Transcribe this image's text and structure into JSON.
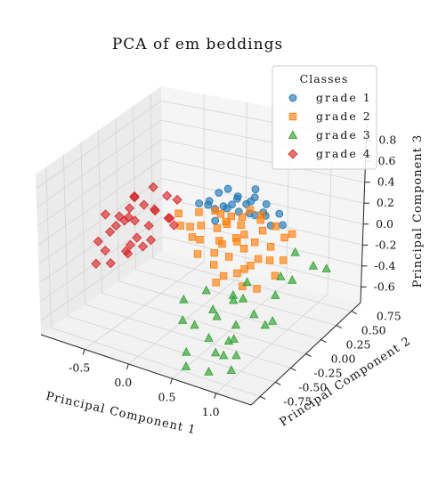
{
  "chart_data": {
    "type": "scatter",
    "projection": "3d",
    "title": "PCA of em beddings",
    "xlabel": "Principal Component 1",
    "ylabel": "Principal Component 2",
    "zlabel": "Principal Component 3",
    "xlim": [
      -1.0,
      1.4
    ],
    "ylim": [
      -0.9,
      0.9
    ],
    "zlim": [
      -0.75,
      0.95
    ],
    "xticks": [
      "-0.5",
      "0.0",
      "0.5",
      "1.0"
    ],
    "xtick_values": [
      -0.5,
      0.0,
      0.5,
      1.0
    ],
    "yticks": [
      "-0.75",
      "-0.50",
      "-0.25",
      "0.00",
      "0.25",
      "0.50",
      "0.75"
    ],
    "ytick_values": [
      -0.75,
      -0.5,
      -0.25,
      0.0,
      0.25,
      0.5,
      0.75
    ],
    "zticks": [
      "-0.6",
      "-0.4",
      "-0.2",
      "0.0",
      "0.2",
      "0.4",
      "0.6",
      "0.8"
    ],
    "ztick_values": [
      -0.6,
      -0.4,
      -0.2,
      0.0,
      0.2,
      0.4,
      0.6,
      0.8
    ],
    "grid": true,
    "legend": {
      "title": "Classes",
      "placement": "top-right"
    },
    "series": [
      {
        "name": "grade 1",
        "marker": "circle",
        "color": "#1f77b4",
        "points": [
          [
            0.12,
            0.62,
            0.18
          ],
          [
            -0.05,
            0.55,
            0.22
          ],
          [
            0.25,
            0.58,
            0.15
          ],
          [
            0.35,
            0.5,
            0.12
          ],
          [
            0.05,
            0.7,
            0.1
          ],
          [
            0.18,
            0.45,
            0.2
          ],
          [
            0.42,
            0.62,
            0.08
          ],
          [
            -0.12,
            0.48,
            0.12
          ],
          [
            0.28,
            0.68,
            0.25
          ],
          [
            0.08,
            0.52,
            0.3
          ],
          [
            0.5,
            0.55,
            0.1
          ],
          [
            0.15,
            0.78,
            0.05
          ],
          [
            -0.2,
            0.6,
            0.08
          ],
          [
            0.3,
            0.4,
            0.18
          ],
          [
            0.6,
            0.5,
            0.05
          ],
          [
            0.02,
            0.4,
            0.15
          ],
          [
            0.38,
            0.72,
            0.1
          ],
          [
            0.2,
            0.35,
            0.22
          ],
          [
            -0.08,
            0.66,
            0.02
          ],
          [
            0.45,
            0.45,
            0.15
          ],
          [
            0.65,
            0.62,
            0.0
          ],
          [
            0.1,
            0.3,
            0.1
          ],
          [
            0.55,
            0.7,
            0.05
          ],
          [
            -0.15,
            0.38,
            0.18
          ],
          [
            0.22,
            0.75,
            0.12
          ]
        ]
      },
      {
        "name": "grade 2",
        "marker": "square",
        "color": "#ff7f0e",
        "points": [
          [
            0.3,
            0.1,
            0.05
          ],
          [
            0.45,
            0.05,
            -0.05
          ],
          [
            0.2,
            0.2,
            0.1
          ],
          [
            0.55,
            0.15,
            0.0
          ],
          [
            0.35,
            -0.05,
            -0.1
          ],
          [
            0.6,
            0.25,
            0.02
          ],
          [
            0.15,
            0.0,
            0.08
          ],
          [
            0.4,
            0.3,
            0.12
          ],
          [
            0.7,
            0.05,
            -0.08
          ],
          [
            0.25,
            0.35,
            0.15
          ],
          [
            0.5,
            -0.1,
            -0.15
          ],
          [
            0.05,
            0.15,
            0.12
          ],
          [
            0.75,
            0.3,
            -0.02
          ],
          [
            0.3,
            0.45,
            0.1
          ],
          [
            0.62,
            -0.05,
            -0.12
          ],
          [
            0.1,
            0.3,
            0.2
          ],
          [
            0.85,
            0.15,
            -0.05
          ],
          [
            0.42,
            0.2,
            0.05
          ],
          [
            0.2,
            -0.1,
            0.0
          ],
          [
            0.58,
            0.4,
            0.05
          ],
          [
            0.0,
            0.05,
            0.15
          ],
          [
            0.8,
            0.45,
            0.0
          ],
          [
            0.35,
            0.15,
            0.2
          ],
          [
            0.68,
            0.2,
            -0.1
          ],
          [
            -0.05,
            0.25,
            0.18
          ],
          [
            0.48,
            0.5,
            0.08
          ],
          [
            0.9,
            0.3,
            -0.12
          ],
          [
            0.28,
            0.05,
            -0.05
          ],
          [
            0.52,
            0.08,
            0.1
          ],
          [
            0.15,
            0.4,
            0.05
          ],
          [
            0.72,
            -0.1,
            -0.2
          ],
          [
            0.38,
            0.38,
            -0.02
          ],
          [
            -0.15,
            0.1,
            0.1
          ],
          [
            0.62,
            0.55,
            0.02
          ],
          [
            0.22,
            0.25,
            -0.08
          ],
          [
            0.95,
            0.1,
            -0.15
          ],
          [
            0.45,
            -0.15,
            -0.2
          ],
          [
            0.1,
            -0.05,
            0.12
          ],
          [
            0.78,
            0.6,
            -0.05
          ],
          [
            0.32,
            0.55,
            0.12
          ],
          [
            -0.25,
            0.2,
            0.15
          ],
          [
            0.58,
            0.12,
            -0.18
          ],
          [
            0.05,
            0.45,
            0.08
          ],
          [
            0.85,
            -0.05,
            -0.22
          ],
          [
            0.4,
            0.62,
            0.05
          ]
        ]
      },
      {
        "name": "grade 3",
        "marker": "triangle",
        "color": "#2ca02c",
        "points": [
          [
            0.6,
            -0.4,
            -0.3
          ],
          [
            0.8,
            -0.2,
            -0.25
          ],
          [
            0.5,
            -0.55,
            -0.4
          ],
          [
            0.9,
            -0.45,
            -0.35
          ],
          [
            0.7,
            -0.6,
            -0.45
          ],
          [
            1.0,
            -0.3,
            -0.3
          ],
          [
            0.45,
            -0.3,
            -0.2
          ],
          [
            0.85,
            -0.7,
            -0.5
          ],
          [
            1.1,
            -0.1,
            -0.2
          ],
          [
            0.65,
            -0.15,
            -0.28
          ],
          [
            0.95,
            -0.55,
            -0.42
          ],
          [
            0.55,
            -0.75,
            -0.55
          ],
          [
            1.15,
            0.1,
            -0.15
          ],
          [
            0.75,
            -0.35,
            -0.6
          ],
          [
            1.2,
            -0.4,
            -0.3
          ],
          [
            0.4,
            -0.6,
            -0.35
          ],
          [
            1.05,
            -0.65,
            -0.5
          ],
          [
            0.7,
            0.0,
            -0.22
          ],
          [
            0.88,
            -0.85,
            -0.6
          ],
          [
            1.25,
            0.3,
            -0.1
          ],
          [
            0.5,
            -0.2,
            -0.5
          ],
          [
            1.1,
            -0.8,
            -0.55
          ],
          [
            0.62,
            -0.85,
            -0.62
          ],
          [
            0.98,
            0.15,
            -0.18
          ],
          [
            1.3,
            0.45,
            -0.2
          ],
          [
            0.3,
            -0.45,
            -0.25
          ],
          [
            0.8,
            -0.5,
            -0.65
          ],
          [
            1.18,
            -0.25,
            -0.35
          ],
          [
            0.58,
            -0.05,
            -0.4
          ],
          [
            1.0,
            0.35,
            -0.05
          ]
        ]
      },
      {
        "name": "grade 4",
        "marker": "diamond",
        "color": "#d62728",
        "points": [
          [
            -0.6,
            0.0,
            0.1
          ],
          [
            -0.75,
            0.1,
            0.05
          ],
          [
            -0.5,
            -0.1,
            0.0
          ],
          [
            -0.85,
            -0.05,
            -0.05
          ],
          [
            -0.65,
            0.2,
            0.15
          ],
          [
            -0.45,
            0.1,
            0.2
          ],
          [
            -0.9,
            0.15,
            0.0
          ],
          [
            -0.55,
            -0.2,
            -0.1
          ],
          [
            -0.7,
            -0.15,
            0.1
          ],
          [
            -0.8,
            0.25,
            0.18
          ],
          [
            -0.4,
            -0.05,
            0.12
          ],
          [
            -0.95,
            -0.1,
            -0.15
          ],
          [
            -0.6,
            0.3,
            0.05
          ],
          [
            -0.35,
            0.2,
            0.08
          ],
          [
            -0.75,
            -0.25,
            -0.12
          ],
          [
            -0.5,
            0.35,
            0.2
          ],
          [
            -0.88,
            0.35,
            0.1
          ],
          [
            -0.3,
            -0.15,
            0.05
          ],
          [
            -0.65,
            -0.3,
            -0.2
          ],
          [
            -0.42,
            0.4,
            0.15
          ],
          [
            -0.98,
            0.05,
            0.05
          ],
          [
            -0.55,
            0.05,
            -0.18
          ],
          [
            -0.7,
            0.4,
            0.22
          ],
          [
            -0.25,
            0.05,
            0.18
          ],
          [
            -0.82,
            -0.3,
            -0.25
          ],
          [
            -0.45,
            -0.3,
            -0.05
          ],
          [
            -0.92,
            0.25,
            -0.1
          ],
          [
            -0.62,
            -0.05,
            0.25
          ],
          [
            -0.38,
            0.3,
            -0.05
          ],
          [
            -0.72,
            0.08,
            -0.22
          ]
        ]
      }
    ]
  }
}
